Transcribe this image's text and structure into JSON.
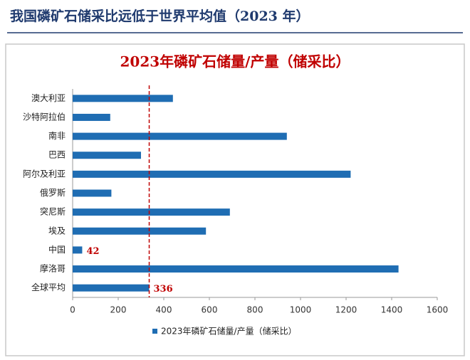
{
  "heading": "我国磷矿石储采比远低于世界平均值（2023 年）",
  "chart_data": {
    "type": "hbar",
    "title": "2023年磷矿石储量/产量（储采比）",
    "categories": [
      "澳大利亚",
      "沙特阿拉伯",
      "南非",
      "巴西",
      "阿尔及利亚",
      "俄罗斯",
      "突尼斯",
      "埃及",
      "中国",
      "摩洛哥",
      "全球平均"
    ],
    "series": [
      {
        "name": "2023年磷矿石储量/产量（储采比）",
        "color": "#1f6db3",
        "values": [
          440,
          165,
          940,
          300,
          1220,
          170,
          690,
          585,
          42,
          1430,
          336
        ],
        "data_labels": [
          false,
          false,
          false,
          false,
          false,
          false,
          false,
          false,
          true,
          false,
          true
        ]
      }
    ],
    "reference_line": {
      "series": 0,
      "index": 10,
      "color": "#c00000"
    },
    "xlim": [
      0,
      1600
    ],
    "xticks": [
      0,
      200,
      400,
      600,
      800,
      1000,
      1200,
      1400,
      1600
    ],
    "legend": "bottom"
  }
}
